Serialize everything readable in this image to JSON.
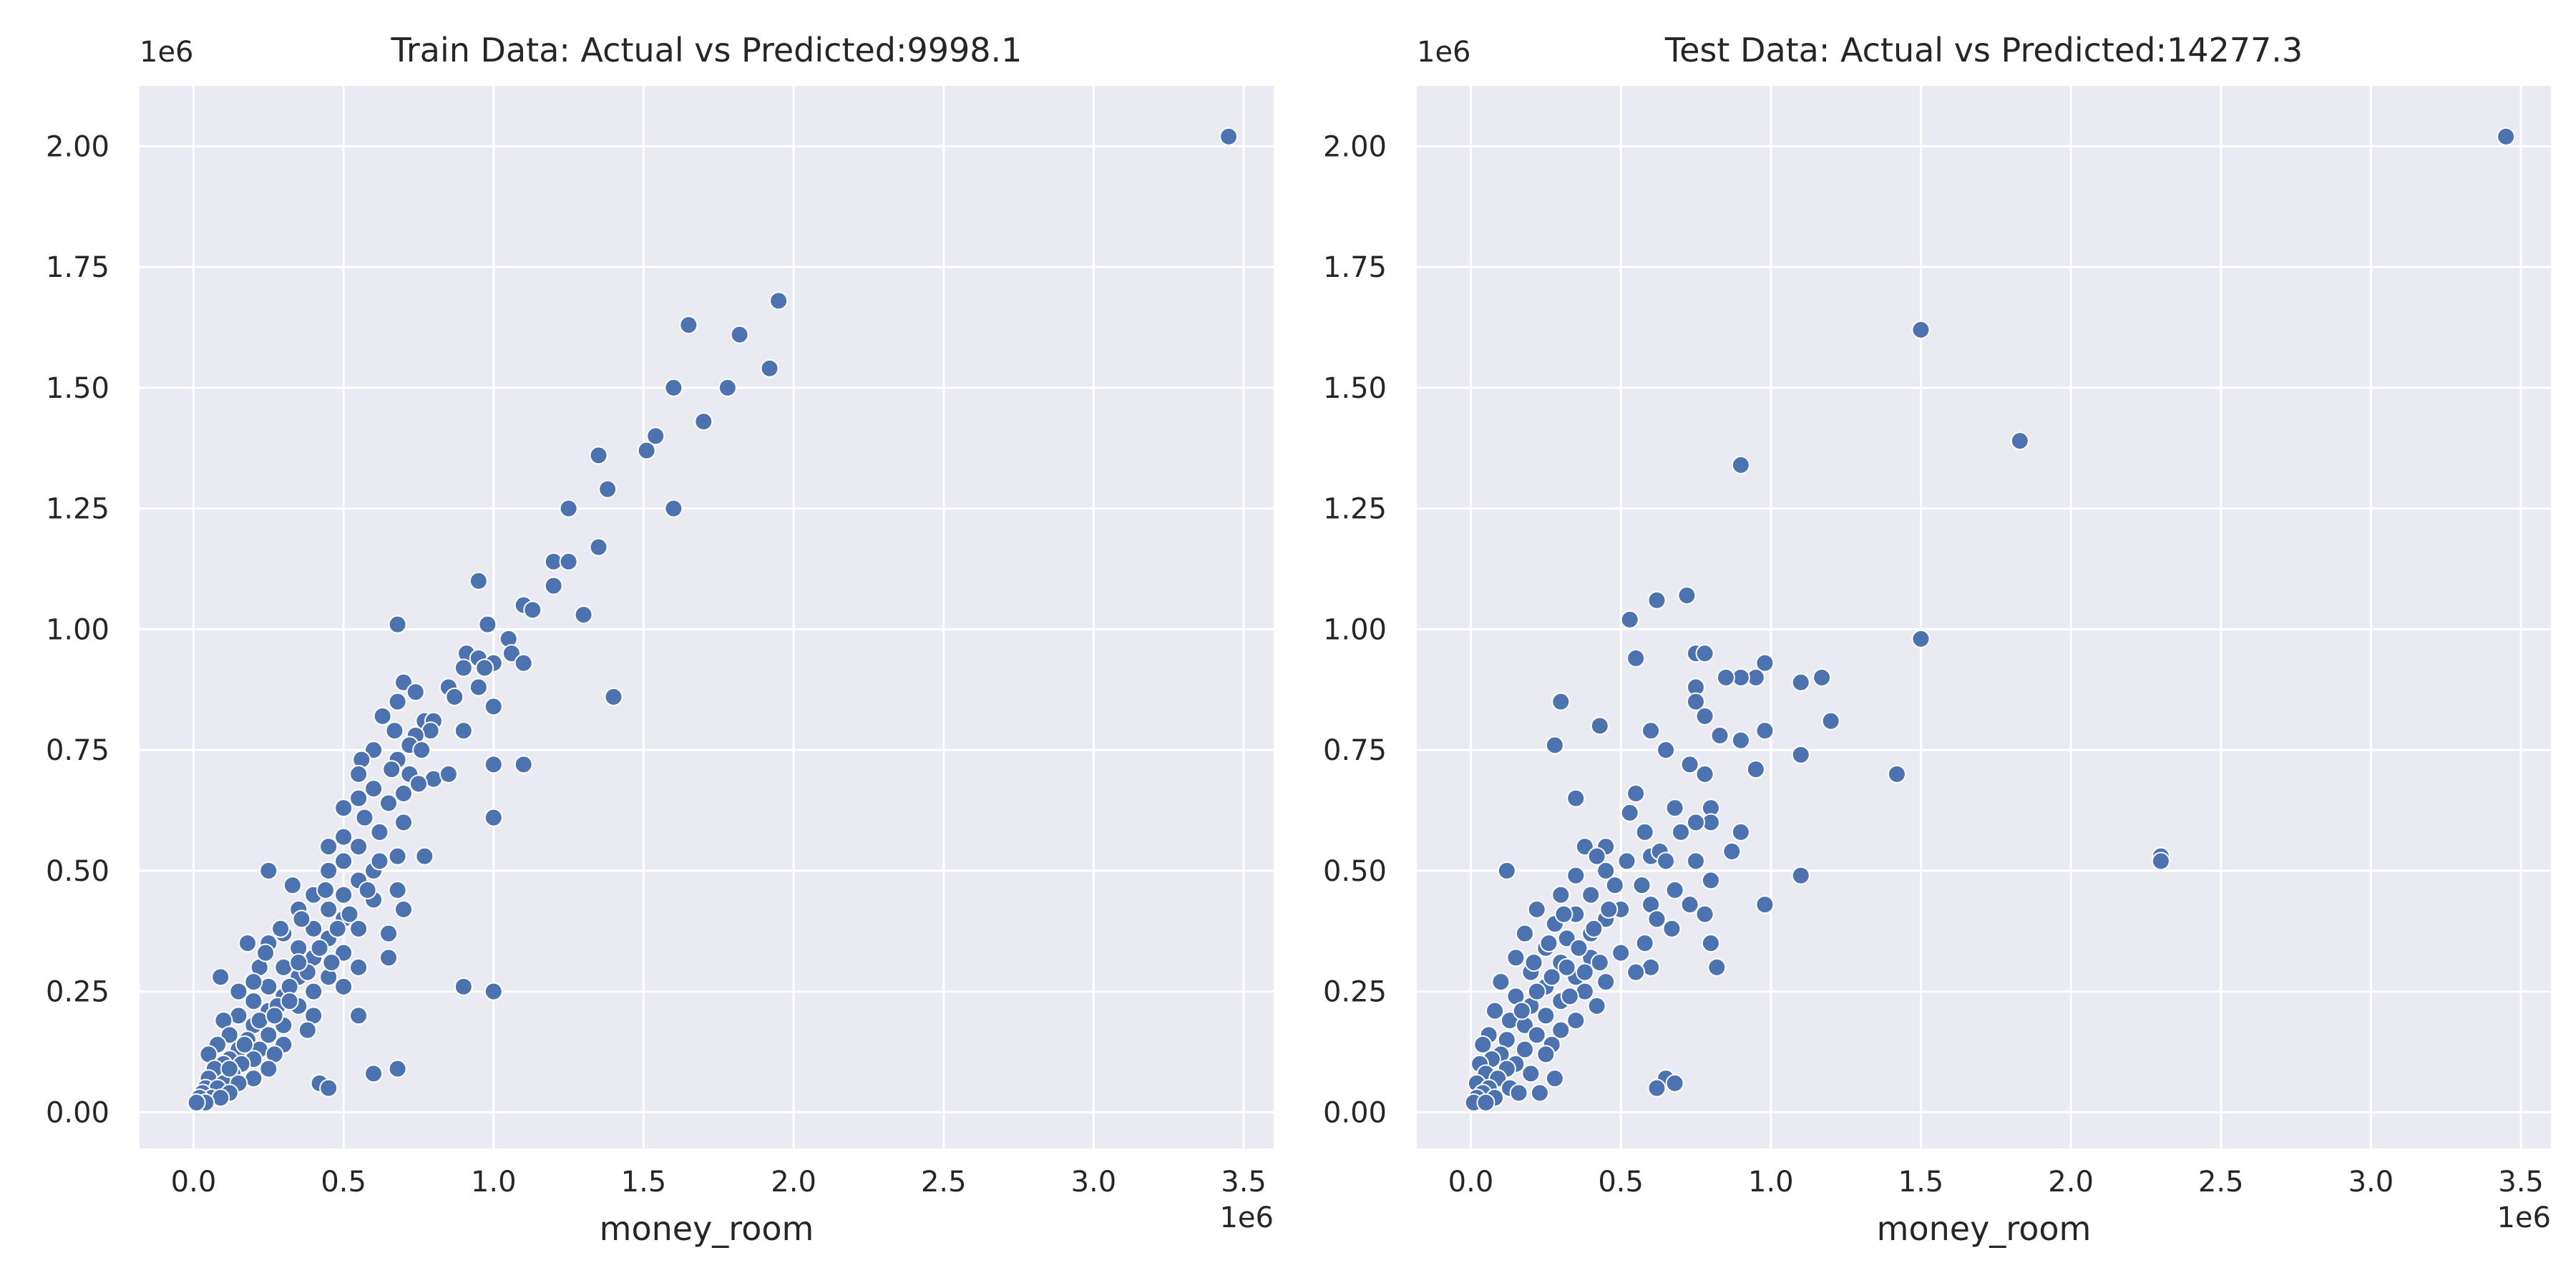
{
  "figure": {
    "background": "#ffffff",
    "axes_background": "#eaeaf2",
    "grid_color": "#ffffff",
    "marker_color": "#4c72b0",
    "marker_edge": "#ffffff"
  },
  "chart_data": [
    {
      "type": "scatter",
      "title": "Train Data: Actual vs Predicted:9998.1",
      "xlabel": "money_room",
      "ylabel": "",
      "x_offset_label": "1e6",
      "y_offset_label": "1e6",
      "xlim": [
        -0.18,
        3.6
      ],
      "ylim": [
        -0.075,
        2.125
      ],
      "xticks": [
        0.0,
        0.5,
        1.0,
        1.5,
        2.0,
        2.5,
        3.0,
        3.5
      ],
      "xtick_labels": [
        "0.0",
        "0.5",
        "1.0",
        "1.5",
        "2.0",
        "2.5",
        "3.0",
        "3.5"
      ],
      "yticks": [
        0.0,
        0.25,
        0.5,
        0.75,
        1.0,
        1.25,
        1.5,
        1.75,
        2.0
      ],
      "ytick_labels": [
        "0.00",
        "0.25",
        "0.50",
        "0.75",
        "1.00",
        "1.25",
        "1.50",
        "1.75",
        "2.00"
      ],
      "grid": true,
      "points": [
        [
          3.45,
          2.02
        ],
        [
          1.95,
          1.68
        ],
        [
          1.65,
          1.63
        ],
        [
          1.82,
          1.61
        ],
        [
          1.92,
          1.54
        ],
        [
          1.6,
          1.5
        ],
        [
          1.78,
          1.5
        ],
        [
          1.7,
          1.43
        ],
        [
          1.54,
          1.4
        ],
        [
          1.51,
          1.37
        ],
        [
          1.35,
          1.36
        ],
        [
          1.38,
          1.29
        ],
        [
          1.25,
          1.25
        ],
        [
          1.6,
          1.25
        ],
        [
          1.35,
          1.17
        ],
        [
          1.2,
          1.14
        ],
        [
          1.25,
          1.14
        ],
        [
          0.95,
          1.1
        ],
        [
          1.2,
          1.09
        ],
        [
          1.1,
          1.05
        ],
        [
          1.13,
          1.04
        ],
        [
          1.3,
          1.03
        ],
        [
          0.98,
          1.01
        ],
        [
          0.68,
          1.01
        ],
        [
          1.05,
          0.98
        ],
        [
          1.06,
          0.95
        ],
        [
          0.91,
          0.95
        ],
        [
          0.95,
          0.94
        ],
        [
          1.1,
          0.93
        ],
        [
          1.0,
          0.93
        ],
        [
          0.97,
          0.92
        ],
        [
          0.9,
          0.92
        ],
        [
          0.7,
          0.89
        ],
        [
          0.95,
          0.88
        ],
        [
          0.85,
          0.88
        ],
        [
          0.74,
          0.87
        ],
        [
          1.4,
          0.86
        ],
        [
          0.87,
          0.86
        ],
        [
          0.68,
          0.85
        ],
        [
          0.63,
          0.82
        ],
        [
          1.0,
          0.84
        ],
        [
          0.77,
          0.81
        ],
        [
          0.8,
          0.81
        ],
        [
          0.67,
          0.79
        ],
        [
          0.79,
          0.79
        ],
        [
          0.9,
          0.79
        ],
        [
          0.74,
          0.78
        ],
        [
          0.72,
          0.76
        ],
        [
          0.6,
          0.75
        ],
        [
          0.76,
          0.75
        ],
        [
          0.68,
          0.73
        ],
        [
          0.56,
          0.73
        ],
        [
          1.0,
          0.72
        ],
        [
          1.1,
          0.72
        ],
        [
          0.55,
          0.7
        ],
        [
          0.66,
          0.71
        ],
        [
          0.72,
          0.7
        ],
        [
          0.8,
          0.69
        ],
        [
          0.85,
          0.7
        ],
        [
          0.75,
          0.68
        ],
        [
          0.6,
          0.67
        ],
        [
          0.7,
          0.66
        ],
        [
          0.55,
          0.65
        ],
        [
          0.65,
          0.64
        ],
        [
          0.5,
          0.63
        ],
        [
          0.57,
          0.61
        ],
        [
          0.7,
          0.6
        ],
        [
          1.0,
          0.61
        ],
        [
          0.62,
          0.58
        ],
        [
          0.5,
          0.57
        ],
        [
          0.45,
          0.55
        ],
        [
          0.55,
          0.55
        ],
        [
          0.68,
          0.53
        ],
        [
          0.77,
          0.53
        ],
        [
          0.5,
          0.52
        ],
        [
          0.6,
          0.5
        ],
        [
          0.25,
          0.5
        ],
        [
          0.45,
          0.5
        ],
        [
          0.55,
          0.48
        ],
        [
          0.68,
          0.46
        ],
        [
          0.33,
          0.47
        ],
        [
          0.4,
          0.45
        ],
        [
          0.5,
          0.45
        ],
        [
          0.6,
          0.44
        ],
        [
          0.7,
          0.42
        ],
        [
          0.45,
          0.42
        ],
        [
          0.35,
          0.42
        ],
        [
          0.5,
          0.4
        ],
        [
          0.55,
          0.38
        ],
        [
          0.4,
          0.38
        ],
        [
          0.3,
          0.37
        ],
        [
          0.45,
          0.36
        ],
        [
          0.65,
          0.37
        ],
        [
          0.25,
          0.35
        ],
        [
          0.35,
          0.34
        ],
        [
          0.5,
          0.33
        ],
        [
          0.18,
          0.35
        ],
        [
          0.4,
          0.32
        ],
        [
          0.3,
          0.3
        ],
        [
          0.55,
          0.3
        ],
        [
          0.65,
          0.32
        ],
        [
          0.45,
          0.28
        ],
        [
          0.22,
          0.3
        ],
        [
          0.35,
          0.28
        ],
        [
          0.5,
          0.26
        ],
        [
          0.25,
          0.26
        ],
        [
          0.09,
          0.28
        ],
        [
          0.15,
          0.25
        ],
        [
          0.4,
          0.25
        ],
        [
          0.3,
          0.24
        ],
        [
          0.2,
          0.23
        ],
        [
          0.35,
          0.22
        ],
        [
          0.25,
          0.21
        ],
        [
          0.15,
          0.2
        ],
        [
          0.55,
          0.2
        ],
        [
          0.4,
          0.2
        ],
        [
          0.1,
          0.19
        ],
        [
          0.3,
          0.18
        ],
        [
          0.2,
          0.18
        ],
        [
          0.38,
          0.17
        ],
        [
          0.25,
          0.16
        ],
        [
          0.12,
          0.16
        ],
        [
          0.18,
          0.15
        ],
        [
          0.3,
          0.14
        ],
        [
          0.08,
          0.14
        ],
        [
          0.15,
          0.13
        ],
        [
          0.22,
          0.13
        ],
        [
          0.05,
          0.12
        ],
        [
          0.12,
          0.11
        ],
        [
          0.2,
          0.11
        ],
        [
          0.27,
          0.12
        ],
        [
          0.1,
          0.1
        ],
        [
          0.16,
          0.1
        ],
        [
          0.25,
          0.09
        ],
        [
          0.07,
          0.09
        ],
        [
          0.13,
          0.08
        ],
        [
          0.2,
          0.07
        ],
        [
          0.05,
          0.07
        ],
        [
          0.1,
          0.06
        ],
        [
          0.15,
          0.06
        ],
        [
          0.04,
          0.05
        ],
        [
          0.08,
          0.05
        ],
        [
          0.12,
          0.04
        ],
        [
          0.03,
          0.04
        ],
        [
          0.06,
          0.03
        ],
        [
          0.02,
          0.03
        ],
        [
          0.09,
          0.03
        ],
        [
          0.04,
          0.02
        ],
        [
          0.01,
          0.02
        ],
        [
          0.9,
          0.26
        ],
        [
          1.0,
          0.25
        ],
        [
          0.68,
          0.09
        ],
        [
          0.6,
          0.08
        ],
        [
          0.42,
          0.06
        ],
        [
          0.45,
          0.05
        ],
        [
          0.28,
          0.22
        ],
        [
          0.32,
          0.26
        ],
        [
          0.38,
          0.29
        ],
        [
          0.42,
          0.34
        ],
        [
          0.48,
          0.38
        ],
        [
          0.52,
          0.41
        ],
        [
          0.58,
          0.46
        ],
        [
          0.62,
          0.52
        ],
        [
          0.35,
          0.31
        ],
        [
          0.22,
          0.19
        ],
        [
          0.17,
          0.14
        ],
        [
          0.12,
          0.09
        ],
        [
          0.27,
          0.2
        ],
        [
          0.32,
          0.23
        ],
        [
          0.46,
          0.31
        ],
        [
          0.2,
          0.27
        ],
        [
          0.24,
          0.33
        ],
        [
          0.29,
          0.38
        ],
        [
          0.36,
          0.4
        ],
        [
          0.44,
          0.46
        ]
      ]
    },
    {
      "type": "scatter",
      "title": "Test Data: Actual vs Predicted:14277.3",
      "xlabel": "money_room",
      "ylabel": "",
      "x_offset_label": "1e6",
      "y_offset_label": "1e6",
      "xlim": [
        -0.18,
        3.6
      ],
      "ylim": [
        -0.075,
        2.125
      ],
      "xticks": [
        0.0,
        0.5,
        1.0,
        1.5,
        2.0,
        2.5,
        3.0,
        3.5
      ],
      "xtick_labels": [
        "0.0",
        "0.5",
        "1.0",
        "1.5",
        "2.0",
        "2.5",
        "3.0",
        "3.5"
      ],
      "yticks": [
        0.0,
        0.25,
        0.5,
        0.75,
        1.0,
        1.25,
        1.5,
        1.75,
        2.0
      ],
      "ytick_labels": [
        "0.00",
        "0.25",
        "0.50",
        "0.75",
        "1.00",
        "1.25",
        "1.50",
        "1.75",
        "2.00"
      ],
      "grid": true,
      "points": [
        [
          3.45,
          2.02
        ],
        [
          1.5,
          1.62
        ],
        [
          1.83,
          1.39
        ],
        [
          0.9,
          1.34
        ],
        [
          0.72,
          1.07
        ],
        [
          0.62,
          1.06
        ],
        [
          0.53,
          1.02
        ],
        [
          1.5,
          0.98
        ],
        [
          0.75,
          0.95
        ],
        [
          0.78,
          0.95
        ],
        [
          0.55,
          0.94
        ],
        [
          0.98,
          0.93
        ],
        [
          0.95,
          0.9
        ],
        [
          1.17,
          0.9
        ],
        [
          0.9,
          0.9
        ],
        [
          1.1,
          0.89
        ],
        [
          0.85,
          0.9
        ],
        [
          0.75,
          0.88
        ],
        [
          0.75,
          0.85
        ],
        [
          0.3,
          0.85
        ],
        [
          0.78,
          0.82
        ],
        [
          1.2,
          0.81
        ],
        [
          0.43,
          0.8
        ],
        [
          0.6,
          0.79
        ],
        [
          0.98,
          0.79
        ],
        [
          0.83,
          0.78
        ],
        [
          0.9,
          0.77
        ],
        [
          0.28,
          0.76
        ],
        [
          0.65,
          0.75
        ],
        [
          1.1,
          0.74
        ],
        [
          0.73,
          0.72
        ],
        [
          0.95,
          0.71
        ],
        [
          0.78,
          0.7
        ],
        [
          1.42,
          0.7
        ],
        [
          0.55,
          0.66
        ],
        [
          0.35,
          0.65
        ],
        [
          0.68,
          0.63
        ],
        [
          0.8,
          0.63
        ],
        [
          0.8,
          0.6
        ],
        [
          0.53,
          0.62
        ],
        [
          0.75,
          0.6
        ],
        [
          0.58,
          0.58
        ],
        [
          0.9,
          0.58
        ],
        [
          0.7,
          0.58
        ],
        [
          0.45,
          0.55
        ],
        [
          0.38,
          0.55
        ],
        [
          0.6,
          0.53
        ],
        [
          0.42,
          0.53
        ],
        [
          0.87,
          0.54
        ],
        [
          0.63,
          0.54
        ],
        [
          0.75,
          0.52
        ],
        [
          0.65,
          0.52
        ],
        [
          2.3,
          0.53
        ],
        [
          2.3,
          0.52
        ],
        [
          0.52,
          0.52
        ],
        [
          0.12,
          0.5
        ],
        [
          0.45,
          0.5
        ],
        [
          0.35,
          0.49
        ],
        [
          1.1,
          0.49
        ],
        [
          0.8,
          0.48
        ],
        [
          0.57,
          0.47
        ],
        [
          0.68,
          0.46
        ],
        [
          0.4,
          0.45
        ],
        [
          0.3,
          0.45
        ],
        [
          0.73,
          0.43
        ],
        [
          0.98,
          0.43
        ],
        [
          0.5,
          0.42
        ],
        [
          0.6,
          0.43
        ],
        [
          0.22,
          0.42
        ],
        [
          0.35,
          0.41
        ],
        [
          0.45,
          0.4
        ],
        [
          0.78,
          0.41
        ],
        [
          0.62,
          0.4
        ],
        [
          0.28,
          0.39
        ],
        [
          0.67,
          0.38
        ],
        [
          0.4,
          0.37
        ],
        [
          0.18,
          0.37
        ],
        [
          0.32,
          0.36
        ],
        [
          0.8,
          0.35
        ],
        [
          0.58,
          0.35
        ],
        [
          0.25,
          0.34
        ],
        [
          0.5,
          0.33
        ],
        [
          0.4,
          0.32
        ],
        [
          0.15,
          0.32
        ],
        [
          0.3,
          0.31
        ],
        [
          0.6,
          0.3
        ],
        [
          0.55,
          0.29
        ],
        [
          0.82,
          0.3
        ],
        [
          0.2,
          0.29
        ],
        [
          0.35,
          0.28
        ],
        [
          0.45,
          0.27
        ],
        [
          0.1,
          0.27
        ],
        [
          0.25,
          0.26
        ],
        [
          0.38,
          0.25
        ],
        [
          0.15,
          0.24
        ],
        [
          0.3,
          0.23
        ],
        [
          0.2,
          0.22
        ],
        [
          0.42,
          0.22
        ],
        [
          0.08,
          0.21
        ],
        [
          0.25,
          0.2
        ],
        [
          0.35,
          0.19
        ],
        [
          0.13,
          0.19
        ],
        [
          0.18,
          0.18
        ],
        [
          0.3,
          0.17
        ],
        [
          0.06,
          0.16
        ],
        [
          0.22,
          0.16
        ],
        [
          0.12,
          0.15
        ],
        [
          0.27,
          0.14
        ],
        [
          0.04,
          0.14
        ],
        [
          0.18,
          0.13
        ],
        [
          0.1,
          0.12
        ],
        [
          0.25,
          0.12
        ],
        [
          0.07,
          0.11
        ],
        [
          0.15,
          0.1
        ],
        [
          0.03,
          0.1
        ],
        [
          0.12,
          0.09
        ],
        [
          0.2,
          0.08
        ],
        [
          0.05,
          0.08
        ],
        [
          0.09,
          0.07
        ],
        [
          0.28,
          0.07
        ],
        [
          0.02,
          0.06
        ],
        [
          0.13,
          0.05
        ],
        [
          0.06,
          0.05
        ],
        [
          0.04,
          0.04
        ],
        [
          0.16,
          0.04
        ],
        [
          0.23,
          0.04
        ],
        [
          0.02,
          0.03
        ],
        [
          0.08,
          0.03
        ],
        [
          0.01,
          0.02
        ],
        [
          0.05,
          0.02
        ],
        [
          0.65,
          0.07
        ],
        [
          0.62,
          0.05
        ],
        [
          0.68,
          0.06
        ],
        [
          0.32,
          0.3
        ],
        [
          0.36,
          0.34
        ],
        [
          0.41,
          0.38
        ],
        [
          0.46,
          0.42
        ],
        [
          0.27,
          0.28
        ],
        [
          0.22,
          0.25
        ],
        [
          0.17,
          0.21
        ],
        [
          0.33,
          0.24
        ],
        [
          0.38,
          0.29
        ],
        [
          0.43,
          0.31
        ],
        [
          0.21,
          0.31
        ],
        [
          0.26,
          0.35
        ],
        [
          0.31,
          0.41
        ],
        [
          0.48,
          0.47
        ]
      ]
    }
  ]
}
